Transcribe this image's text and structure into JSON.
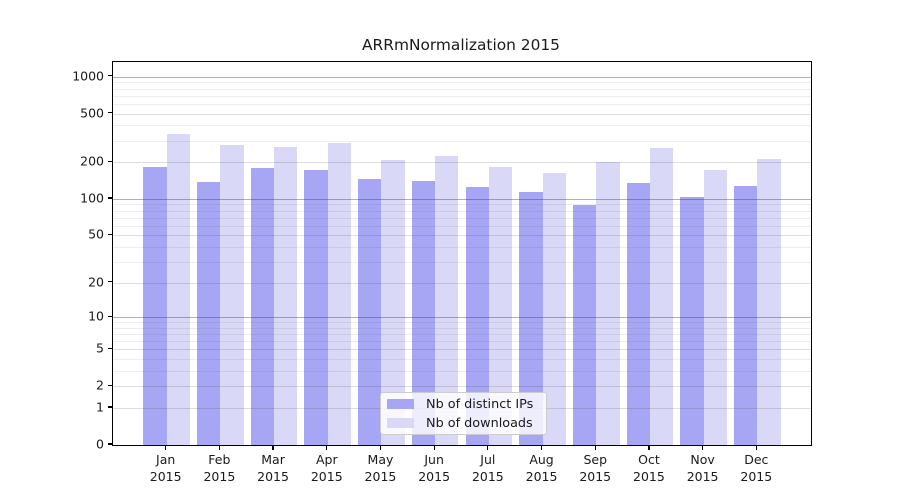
{
  "title": "ARRmNormalization 2015",
  "colors": {
    "distinct_ips": "#a6a6f5",
    "downloads": "#d9d9f7",
    "background": "#ffffff",
    "axis": "#000000"
  },
  "legend": {
    "items": [
      {
        "label": "Nb of distinct IPs",
        "color": "#a6a6f5"
      },
      {
        "label": "Nb of downloads",
        "color": "#d9d9f7"
      }
    ]
  },
  "chart_data": {
    "type": "bar",
    "title": "ARRmNormalization 2015",
    "categories": [
      "Jan 2015",
      "Feb 2015",
      "Mar 2015",
      "Apr 2015",
      "May 2015",
      "Jun 2015",
      "Jul 2015",
      "Aug 2015",
      "Sep 2015",
      "Oct 2015",
      "Nov 2015",
      "Dec 2015"
    ],
    "series": [
      {
        "name": "Nb of distinct IPs",
        "color": "#a6a6f5",
        "values": [
          183,
          138,
          180,
          173,
          146,
          140,
          125,
          114,
          89,
          136,
          104,
          128
        ]
      },
      {
        "name": "Nb of downloads",
        "color": "#d9d9f7",
        "values": [
          338,
          275,
          268,
          287,
          207,
          224,
          183,
          163,
          200,
          263,
          172,
          214
        ]
      }
    ],
    "xlabel": "",
    "ylabel": "",
    "y_scale": "log1p",
    "y_ticks": [
      0,
      1,
      2,
      5,
      10,
      20,
      50,
      100,
      200,
      500,
      1000
    ],
    "y_major_gridlines": [
      10,
      100,
      1000
    ],
    "ylim": [
      0,
      1315
    ],
    "grid": "both",
    "legend_position": "lower center"
  }
}
